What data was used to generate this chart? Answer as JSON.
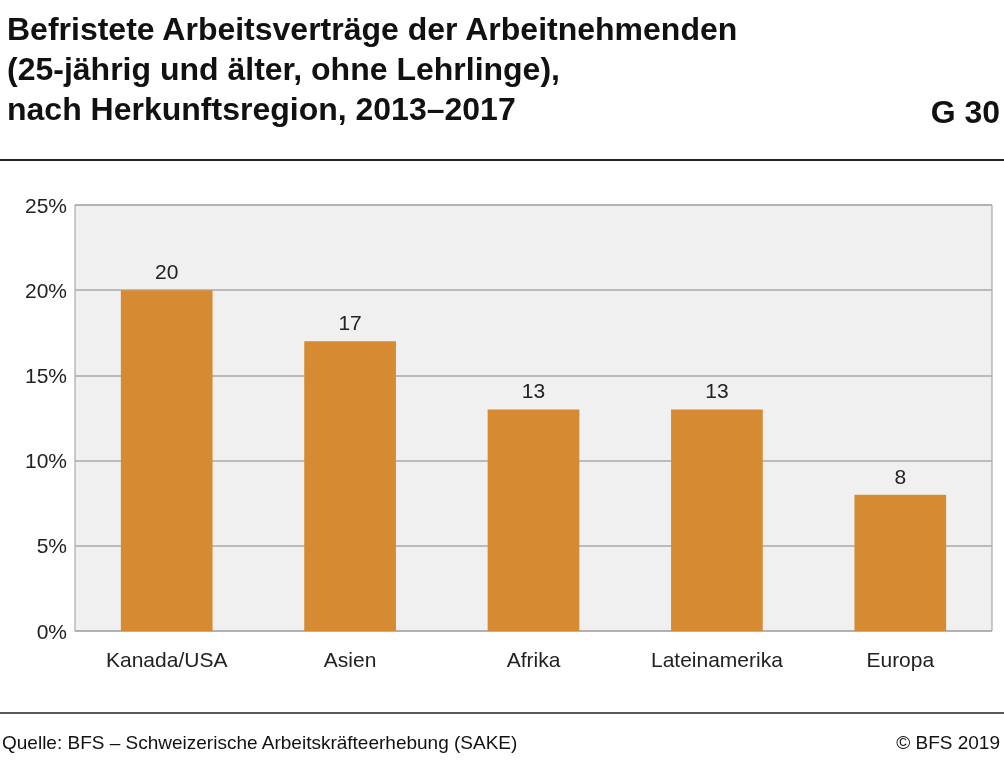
{
  "chart_data": {
    "type": "bar",
    "title": "Befristete Arbeitsverträge der Arbeitnehmenden\n(25-jährig und älter, ohne Lehrlinge),\nnach Herkunftsregion, 2013–2017",
    "categories": [
      "Kanada/USA",
      "Asien",
      "Afrika",
      "Lateinamerika",
      "Europa"
    ],
    "values": [
      20,
      17,
      13,
      13,
      8
    ],
    "color": "#d68b33",
    "ylim": [
      0,
      25
    ],
    "yticks": [
      {
        "value": 0,
        "label": "0%"
      },
      {
        "value": 5,
        "label": "5%"
      },
      {
        "value": 10,
        "label": "10%"
      },
      {
        "value": 15,
        "label": "15%"
      },
      {
        "value": 20,
        "label": "20%"
      },
      {
        "value": 25,
        "label": "25%"
      }
    ],
    "grid": "y",
    "data_labels": true,
    "annotations": [
      "G 30",
      "Quelle: BFS – Schweizerische Arbeitskräfteerhebung (SAKE)",
      "© BFS 2019"
    ]
  }
}
